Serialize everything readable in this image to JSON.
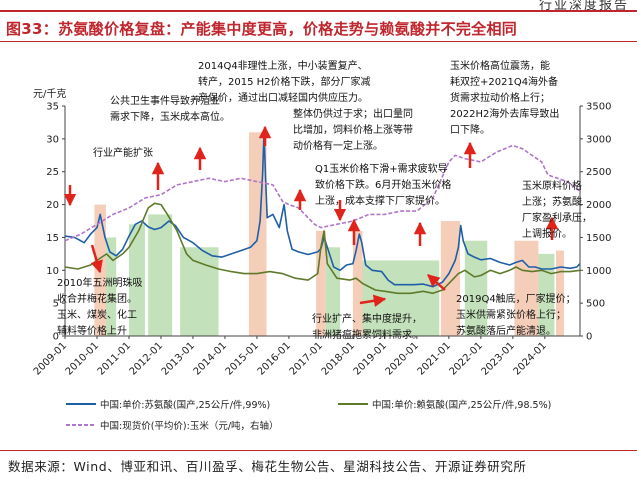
{
  "header": {
    "text": "行业深度报告"
  },
  "figure": {
    "title": "图33：苏氨酸价格复盘：产能集中度更高，价格走势与赖氨酸并不完全相同"
  },
  "source": {
    "text": "数据来源：Wind、博亚和讯、百川盈孚、梅花生物公告、星湖科技公告、开源证券研究所"
  },
  "colors": {
    "threonine": "#1f5fa8",
    "lysine": "#5f7a2a",
    "corn": "#b074c8",
    "rise_box": "#f3c6ae",
    "fall_box": "#b8dcae",
    "arrow": "#e0241b",
    "accent": "#c0262d"
  },
  "chart_data": {
    "type": "line",
    "title": "苏氨酸价格复盘：产能集中度更高，价格走势与赖氨酸并不完全相同",
    "ylabel": "元/千克",
    "ylim": [
      0,
      35
    ],
    "y2lim": [
      0,
      3500
    ],
    "yticks": [
      0,
      5,
      10,
      15,
      20,
      25,
      30,
      35
    ],
    "y2ticks": [
      0,
      500,
      1000,
      1500,
      2000,
      2500,
      3000,
      3500
    ],
    "xlim": [
      2009.0,
      2025.1
    ],
    "xticks": [
      "2009-01",
      "2010-01",
      "2011-01",
      "2012-01",
      "2013-01",
      "2014-01",
      "2015-01",
      "2016-01",
      "2017-01",
      "2018-01",
      "2019-01",
      "2020-01",
      "2021-01",
      "2022-01",
      "2023-01",
      "2024-01"
    ],
    "series": [
      {
        "name": "中国:单价:苏氨酸(国产,25公斤/件,99%)",
        "axis": "left",
        "style": "solid",
        "points": [
          [
            2009.0,
            15.2
          ],
          [
            2009.3,
            15.0
          ],
          [
            2009.6,
            14.2
          ],
          [
            2009.8,
            15.5
          ],
          [
            2010.0,
            16.5
          ],
          [
            2010.1,
            18.5
          ],
          [
            2010.25,
            15.0
          ],
          [
            2010.4,
            12.8
          ],
          [
            2010.6,
            12.2
          ],
          [
            2010.8,
            13.2
          ],
          [
            2011.0,
            15.2
          ],
          [
            2011.2,
            17.0
          ],
          [
            2011.4,
            17.5
          ],
          [
            2011.6,
            16.6
          ],
          [
            2011.8,
            16.2
          ],
          [
            2012.0,
            16.5
          ],
          [
            2012.25,
            17.5
          ],
          [
            2012.45,
            16.8
          ],
          [
            2012.7,
            15.0
          ],
          [
            2013.0,
            14.2
          ],
          [
            2013.3,
            13.0
          ],
          [
            2013.6,
            12.2
          ],
          [
            2013.9,
            12.0
          ],
          [
            2014.2,
            12.5
          ],
          [
            2014.5,
            13.0
          ],
          [
            2014.8,
            13.5
          ],
          [
            2015.0,
            14.5
          ],
          [
            2015.1,
            17.5
          ],
          [
            2015.18,
            25.0
          ],
          [
            2015.22,
            31.0
          ],
          [
            2015.27,
            24.0
          ],
          [
            2015.32,
            18.0
          ],
          [
            2015.5,
            18.5
          ],
          [
            2015.7,
            16.5
          ],
          [
            2015.85,
            20.0
          ],
          [
            2015.95,
            16.0
          ],
          [
            2016.1,
            13.2
          ],
          [
            2016.3,
            12.8
          ],
          [
            2016.6,
            12.4
          ],
          [
            2016.9,
            12.8
          ],
          [
            2017.0,
            13.3
          ],
          [
            2017.1,
            15.0
          ],
          [
            2017.2,
            13.5
          ],
          [
            2017.4,
            10.5
          ],
          [
            2017.6,
            10.0
          ],
          [
            2017.8,
            10.8
          ],
          [
            2018.0,
            11.0
          ],
          [
            2018.1,
            13.0
          ],
          [
            2018.2,
            15.5
          ],
          [
            2018.28,
            14.2
          ],
          [
            2018.4,
            10.8
          ],
          [
            2018.6,
            10.0
          ],
          [
            2018.9,
            9.8
          ],
          [
            2019.1,
            8.5
          ],
          [
            2019.3,
            7.8
          ],
          [
            2019.6,
            7.8
          ],
          [
            2019.9,
            7.8
          ],
          [
            2020.2,
            7.9
          ],
          [
            2020.5,
            7.5
          ],
          [
            2020.8,
            8.2
          ],
          [
            2021.0,
            9.5
          ],
          [
            2021.2,
            11.5
          ],
          [
            2021.3,
            13.5
          ],
          [
            2021.37,
            16.8
          ],
          [
            2021.45,
            14.5
          ],
          [
            2021.6,
            12.5
          ],
          [
            2021.8,
            12.0
          ],
          [
            2022.0,
            11.6
          ],
          [
            2022.3,
            11.8
          ],
          [
            2022.6,
            11.2
          ],
          [
            2022.9,
            10.8
          ],
          [
            2023.1,
            11.2
          ],
          [
            2023.3,
            11.5
          ],
          [
            2023.5,
            10.5
          ],
          [
            2023.7,
            10.5
          ],
          [
            2023.9,
            10.2
          ],
          [
            2024.2,
            10.2
          ],
          [
            2024.5,
            10.5
          ],
          [
            2024.8,
            10.3
          ],
          [
            2025.0,
            10.5
          ],
          [
            2025.1,
            11.0
          ]
        ]
      },
      {
        "name": "中国:单价:赖氨酸(国产,25公斤/件,98.5%)",
        "axis": "left",
        "style": "solid",
        "points": [
          [
            2009.0,
            10.5
          ],
          [
            2009.4,
            10.2
          ],
          [
            2009.8,
            10.8
          ],
          [
            2010.0,
            11.5
          ],
          [
            2010.3,
            12.5
          ],
          [
            2010.5,
            11.5
          ],
          [
            2010.8,
            12.5
          ],
          [
            2011.0,
            13.5
          ],
          [
            2011.3,
            16.0
          ],
          [
            2011.6,
            19.5
          ],
          [
            2011.8,
            20.2
          ],
          [
            2012.0,
            20.0
          ],
          [
            2012.2,
            18.5
          ],
          [
            2012.5,
            16.0
          ],
          [
            2012.8,
            12.5
          ],
          [
            2013.0,
            11.5
          ],
          [
            2013.4,
            10.8
          ],
          [
            2013.8,
            10.2
          ],
          [
            2014.2,
            9.8
          ],
          [
            2014.6,
            9.5
          ],
          [
            2015.0,
            9.5
          ],
          [
            2015.4,
            9.8
          ],
          [
            2015.8,
            9.5
          ],
          [
            2016.2,
            8.8
          ],
          [
            2016.6,
            8.5
          ],
          [
            2016.9,
            9.5
          ],
          [
            2017.0,
            13.5
          ],
          [
            2017.1,
            16.0
          ],
          [
            2017.2,
            11.0
          ],
          [
            2017.5,
            8.8
          ],
          [
            2017.9,
            8.5
          ],
          [
            2018.1,
            8.8
          ],
          [
            2018.3,
            8.0
          ],
          [
            2018.7,
            7.0
          ],
          [
            2019.0,
            6.8
          ],
          [
            2019.4,
            6.5
          ],
          [
            2019.8,
            6.5
          ],
          [
            2020.2,
            6.8
          ],
          [
            2020.5,
            6.5
          ],
          [
            2020.8,
            7.0
          ],
          [
            2021.0,
            8.0
          ],
          [
            2021.3,
            9.5
          ],
          [
            2021.5,
            10.0
          ],
          [
            2021.8,
            9.0
          ],
          [
            2022.0,
            9.2
          ],
          [
            2022.3,
            10.0
          ],
          [
            2022.6,
            9.5
          ],
          [
            2022.9,
            10.0
          ],
          [
            2023.1,
            10.5
          ],
          [
            2023.3,
            10.0
          ],
          [
            2023.6,
            9.8
          ],
          [
            2023.9,
            10.0
          ],
          [
            2024.2,
            9.5
          ],
          [
            2024.5,
            9.8
          ],
          [
            2024.8,
            9.8
          ],
          [
            2025.1,
            10.0
          ]
        ]
      },
      {
        "name": "中国:现货价(平均价):玉米（元/吨，右轴）",
        "axis": "right",
        "style": "dashed",
        "points": [
          [
            2009.0,
            1450
          ],
          [
            2009.5,
            1550
          ],
          [
            2010.0,
            1700
          ],
          [
            2010.5,
            1850
          ],
          [
            2011.0,
            1950
          ],
          [
            2011.5,
            2100
          ],
          [
            2012.0,
            2150
          ],
          [
            2012.5,
            2300
          ],
          [
            2013.0,
            2350
          ],
          [
            2013.5,
            2400
          ],
          [
            2014.0,
            2350
          ],
          [
            2014.5,
            2400
          ],
          [
            2015.0,
            2350
          ],
          [
            2015.5,
            2300
          ],
          [
            2015.8,
            2050
          ],
          [
            2016.0,
            2000
          ],
          [
            2016.3,
            1950
          ],
          [
            2016.5,
            1850
          ],
          [
            2016.8,
            1700
          ],
          [
            2017.0,
            1650
          ],
          [
            2017.5,
            1700
          ],
          [
            2018.0,
            1750
          ],
          [
            2018.5,
            1850
          ],
          [
            2019.0,
            1850
          ],
          [
            2019.5,
            1900
          ],
          [
            2020.0,
            1900
          ],
          [
            2020.5,
            2100
          ],
          [
            2021.0,
            2650
          ],
          [
            2021.2,
            2750
          ],
          [
            2021.5,
            2700
          ],
          [
            2022.0,
            2650
          ],
          [
            2022.5,
            2800
          ],
          [
            2023.0,
            2900
          ],
          [
            2023.3,
            2850
          ],
          [
            2023.6,
            2750
          ],
          [
            2023.9,
            2650
          ],
          [
            2024.1,
            2450
          ],
          [
            2024.4,
            2400
          ],
          [
            2024.7,
            2350
          ],
          [
            2025.1,
            2200
          ]
        ]
      }
    ],
    "shaded_periods": [
      {
        "type": "rise",
        "start": 2009.92,
        "end": 2010.28,
        "top": 20
      },
      {
        "type": "fall",
        "start": 2010.28,
        "end": 2010.6,
        "top": 15
      },
      {
        "type": "fall",
        "start": 2011.0,
        "end": 2011.5,
        "top": 17
      },
      {
        "type": "fall",
        "start": 2011.6,
        "end": 2012.35,
        "top": 18.5
      },
      {
        "type": "fall",
        "start": 2012.6,
        "end": 2013.8,
        "top": 13.5
      },
      {
        "type": "rise",
        "start": 2014.75,
        "end": 2015.3,
        "top": 31
      },
      {
        "type": "rise",
        "start": 2016.85,
        "end": 2017.15,
        "top": 16
      },
      {
        "type": "fall",
        "start": 2017.15,
        "end": 2017.6,
        "top": 13.5
      },
      {
        "type": "rise",
        "start": 2018.0,
        "end": 2018.3,
        "top": 16
      },
      {
        "type": "fall",
        "start": 2018.3,
        "end": 2020.7,
        "top": 11.5
      },
      {
        "type": "rise",
        "start": 2020.75,
        "end": 2021.35,
        "top": 17.5
      },
      {
        "type": "fall",
        "start": 2021.5,
        "end": 2022.2,
        "top": 14.5
      },
      {
        "type": "rise",
        "start": 2023.05,
        "end": 2023.8,
        "top": 14.5
      },
      {
        "type": "fall",
        "start": 2023.8,
        "end": 2024.3,
        "top": 12.5
      },
      {
        "type": "rise",
        "start": 2024.35,
        "end": 2024.6,
        "top": 13
      }
    ],
    "annotations": [
      [
        "2014Q4非理性上涨，中小装置复产、",
        "转产，2015 H2价格下跌，部分厂家减",
        "产保价，通过出口减轻国内供应压力。"
      ],
      [
        "公共卫生事件导致养殖业",
        "需求下降，玉米成本高位。"
      ],
      [
        "行业产能扩张"
      ],
      [
        "整体仍供过于求；出口量同",
        "比增加，饲料价格上涨等带",
        "动价格有一定上涨。"
      ],
      [
        "Q1玉米价格下滑+需求疲软导",
        "致价格下跌。6月开始玉米价格",
        "上涨，成本支撑下厂家提价。"
      ],
      [
        "玉米价格高位震荡，能",
        "耗双控+2021Q4海外备",
        "货需求拉动价格上行；",
        "2022H2海外去库导致出",
        "口下降。"
      ],
      [
        "玉米原料价格",
        "上涨；苏氨酸",
        "厂家盈利承压，",
        "上调报价。"
      ],
      [
        "2010年五洲明珠吸",
        "收合并梅花集团。",
        "玉米、煤炭、化工",
        "辅料等价格上升"
      ],
      [
        "行业扩产、集中度提升，",
        "非洲猪瘟拖累饲料需求。"
      ],
      [
        "2019Q4触底，厂家提价；",
        "玉米供需紧张价格上行；",
        "苏氨酸落后产能清退。"
      ]
    ],
    "legend": {
      "position": "bottom"
    }
  }
}
